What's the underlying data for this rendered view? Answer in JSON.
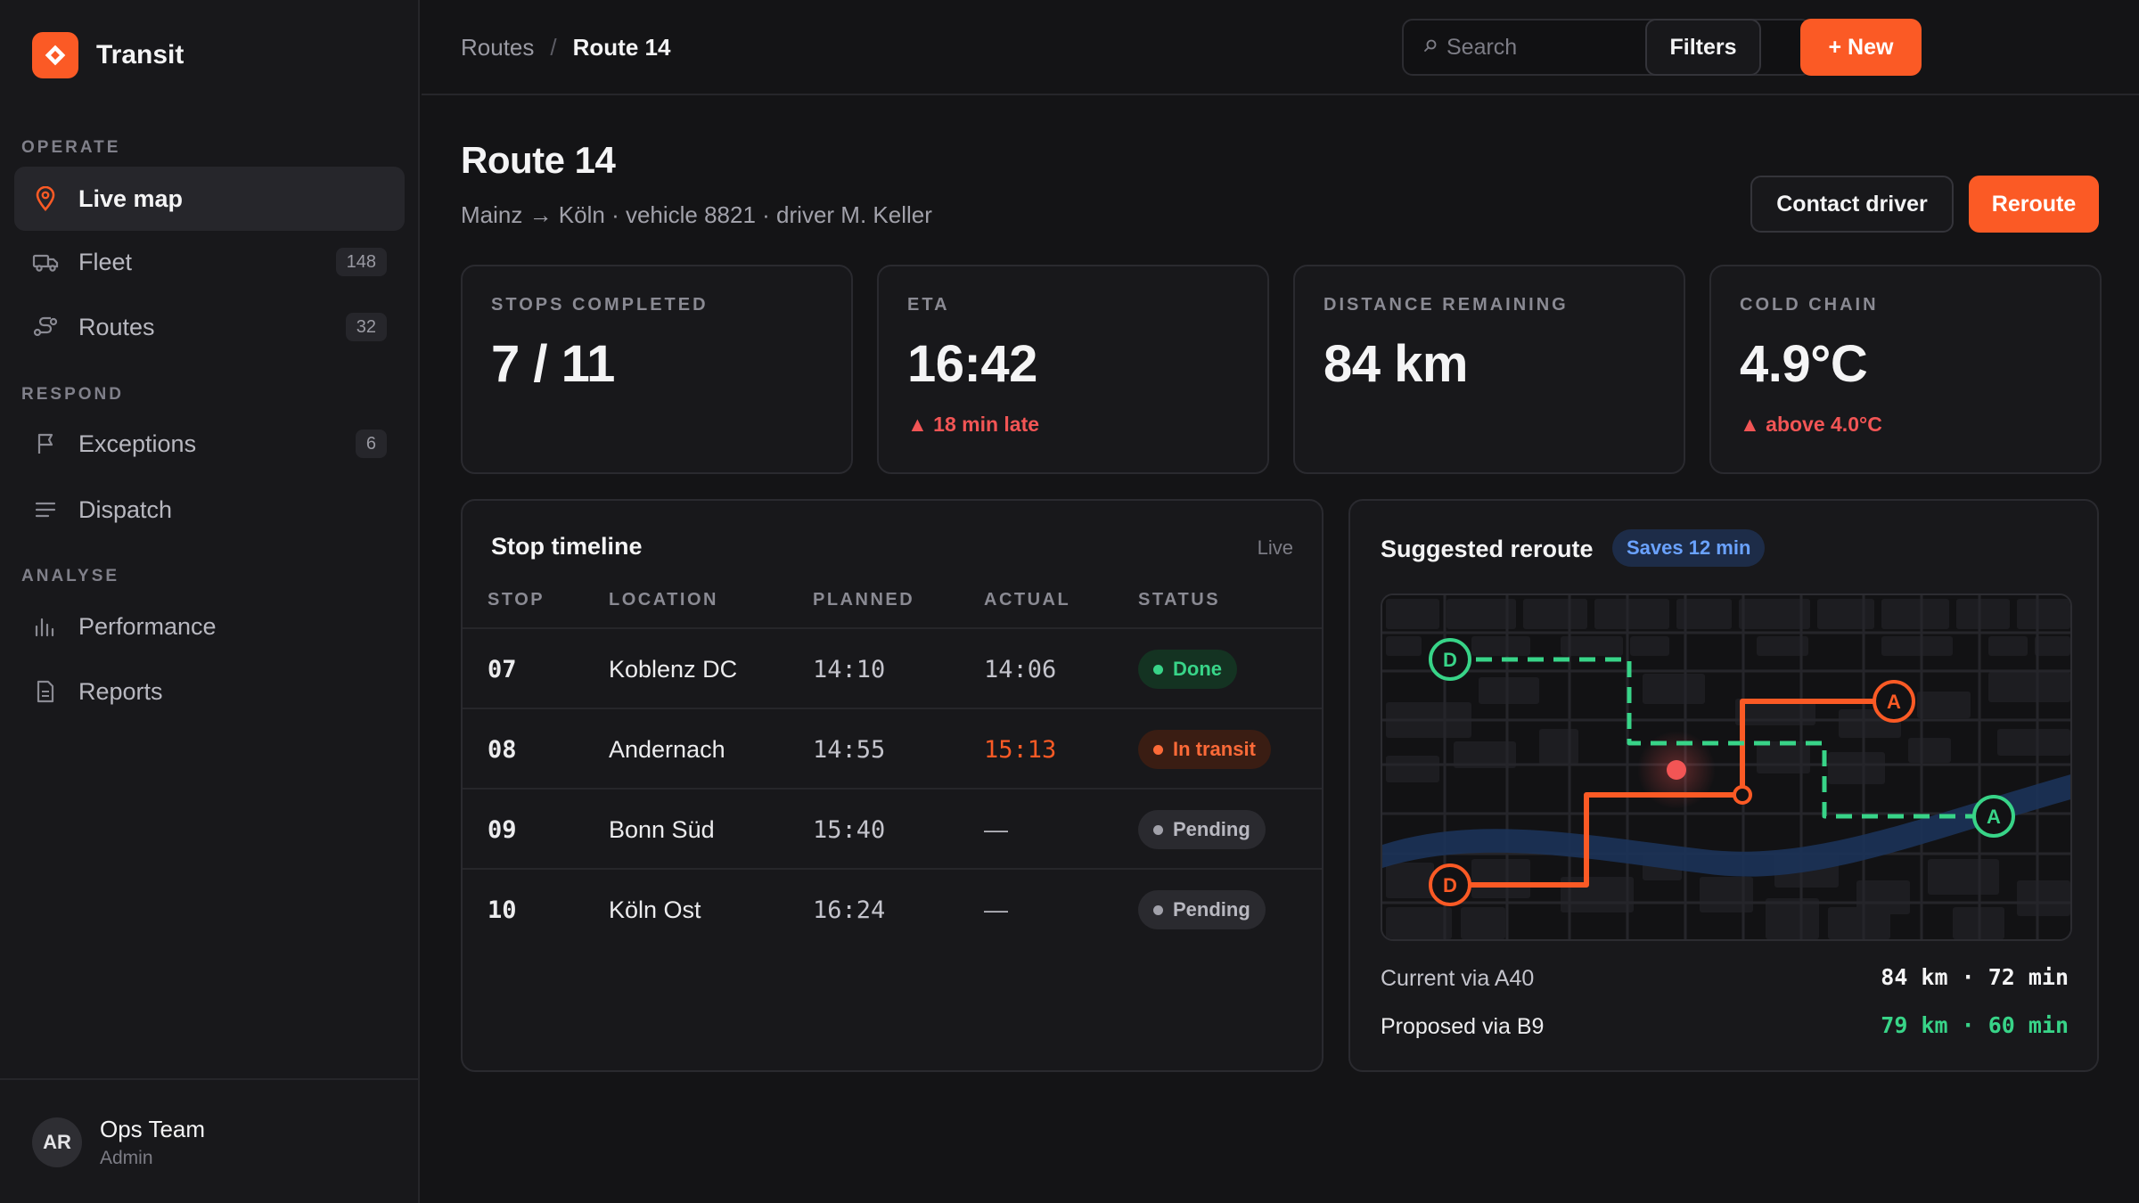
{
  "app": {
    "name": "Transit"
  },
  "sidebar": {
    "sections": [
      {
        "label": "OPERATE"
      },
      {
        "label": "RESPOND"
      },
      {
        "label": "ANALYSE"
      }
    ],
    "items": [
      {
        "label": "Live map",
        "icon": "map-pin-icon"
      },
      {
        "label": "Fleet",
        "badge": "148",
        "icon": "truck-icon"
      },
      {
        "label": "Routes",
        "badge": "32",
        "icon": "route-icon"
      },
      {
        "label": "Exceptions",
        "badge": "6",
        "icon": "flag-icon"
      },
      {
        "label": "Dispatch",
        "icon": "list-icon"
      },
      {
        "label": "Performance",
        "icon": "bar-chart-icon"
      },
      {
        "label": "Reports",
        "icon": "document-icon"
      }
    ],
    "user": {
      "initials": "AR",
      "name": "Ops Team",
      "role": "Admin"
    }
  },
  "topbar": {
    "breadcrumb": {
      "parent": "Routes",
      "separator": "/",
      "current": "Route 14"
    },
    "search": {
      "placeholder": "Search",
      "value": ""
    },
    "filters_label": "Filters",
    "new_label": "+ New"
  },
  "page": {
    "title": "Route 14",
    "subtitle": "Mainz → Köln · vehicle 8821 · driver M. Keller",
    "contact_label": "Contact driver",
    "reroute_label": "Reroute"
  },
  "kpis": [
    {
      "label": "STOPS COMPLETED",
      "value": "7 / 11",
      "note": ""
    },
    {
      "label": "ETA",
      "value": "16:42",
      "note": "▲ 18 min late"
    },
    {
      "label": "DISTANCE REMAINING",
      "value": "84 km",
      "note": ""
    },
    {
      "label": "COLD CHAIN",
      "value": "4.9°C",
      "note": "▲ above 4.0°C"
    }
  ],
  "timeline": {
    "title": "Stop timeline",
    "live_label": "Live",
    "columns": [
      "STOP",
      "LOCATION",
      "PLANNED",
      "ACTUAL",
      "STATUS"
    ],
    "rows": [
      {
        "stop": "07",
        "location": "Koblenz DC",
        "planned": "14:10",
        "actual": "14:06",
        "status": "Done"
      },
      {
        "stop": "08",
        "location": "Andernach",
        "planned": "14:55",
        "actual": "15:13",
        "status": "In transit"
      },
      {
        "stop": "09",
        "location": "Bonn Süd",
        "planned": "15:40",
        "actual": "—",
        "status": "Pending"
      },
      {
        "stop": "10",
        "location": "Köln Ost",
        "planned": "16:24",
        "actual": "—",
        "status": "Pending"
      }
    ]
  },
  "reroute": {
    "title": "Suggested reroute",
    "badge": "Saves 12 min",
    "map": {
      "depart_label": "D",
      "arrive_label": "A"
    },
    "current": {
      "label": "Current via A40",
      "value": "84 km · 72 min"
    },
    "proposed": {
      "label": "Proposed via B9",
      "value": "79 km · 60 min"
    }
  },
  "colors": {
    "accent": "#fb5a25",
    "success": "#38d488",
    "danger": "#f25555",
    "info": "#6aa2ff",
    "background": "#141416",
    "surface": "#18181b"
  }
}
